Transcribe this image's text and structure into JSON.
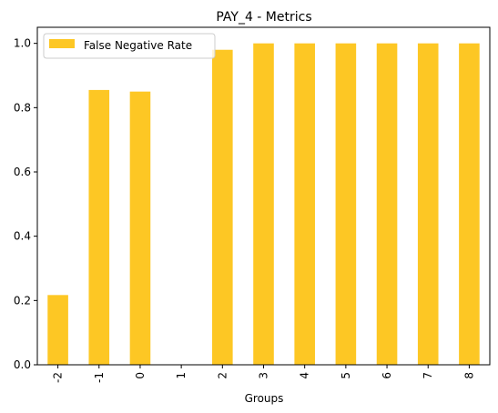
{
  "chart_data": {
    "type": "bar",
    "title": "PAY_4 - Metrics",
    "xlabel": "Groups",
    "ylabel": "",
    "categories": [
      "-2",
      "-1",
      "0",
      "1",
      "2",
      "3",
      "4",
      "5",
      "6",
      "7",
      "8"
    ],
    "series": [
      {
        "name": "False Negative Rate",
        "values": [
          0.217,
          0.855,
          0.85,
          0.0,
          0.98,
          1.0,
          1.0,
          1.0,
          1.0,
          1.0,
          1.0
        ],
        "color": "#fdc724"
      }
    ],
    "ylim": [
      0,
      1.05
    ],
    "yticks": [
      0.0,
      0.2,
      0.4,
      0.6,
      0.8,
      1.0
    ],
    "ytick_labels": [
      "0.0",
      "0.2",
      "0.4",
      "0.6",
      "0.8",
      "1.0"
    ],
    "grid": false,
    "legend_position": "top-left"
  }
}
